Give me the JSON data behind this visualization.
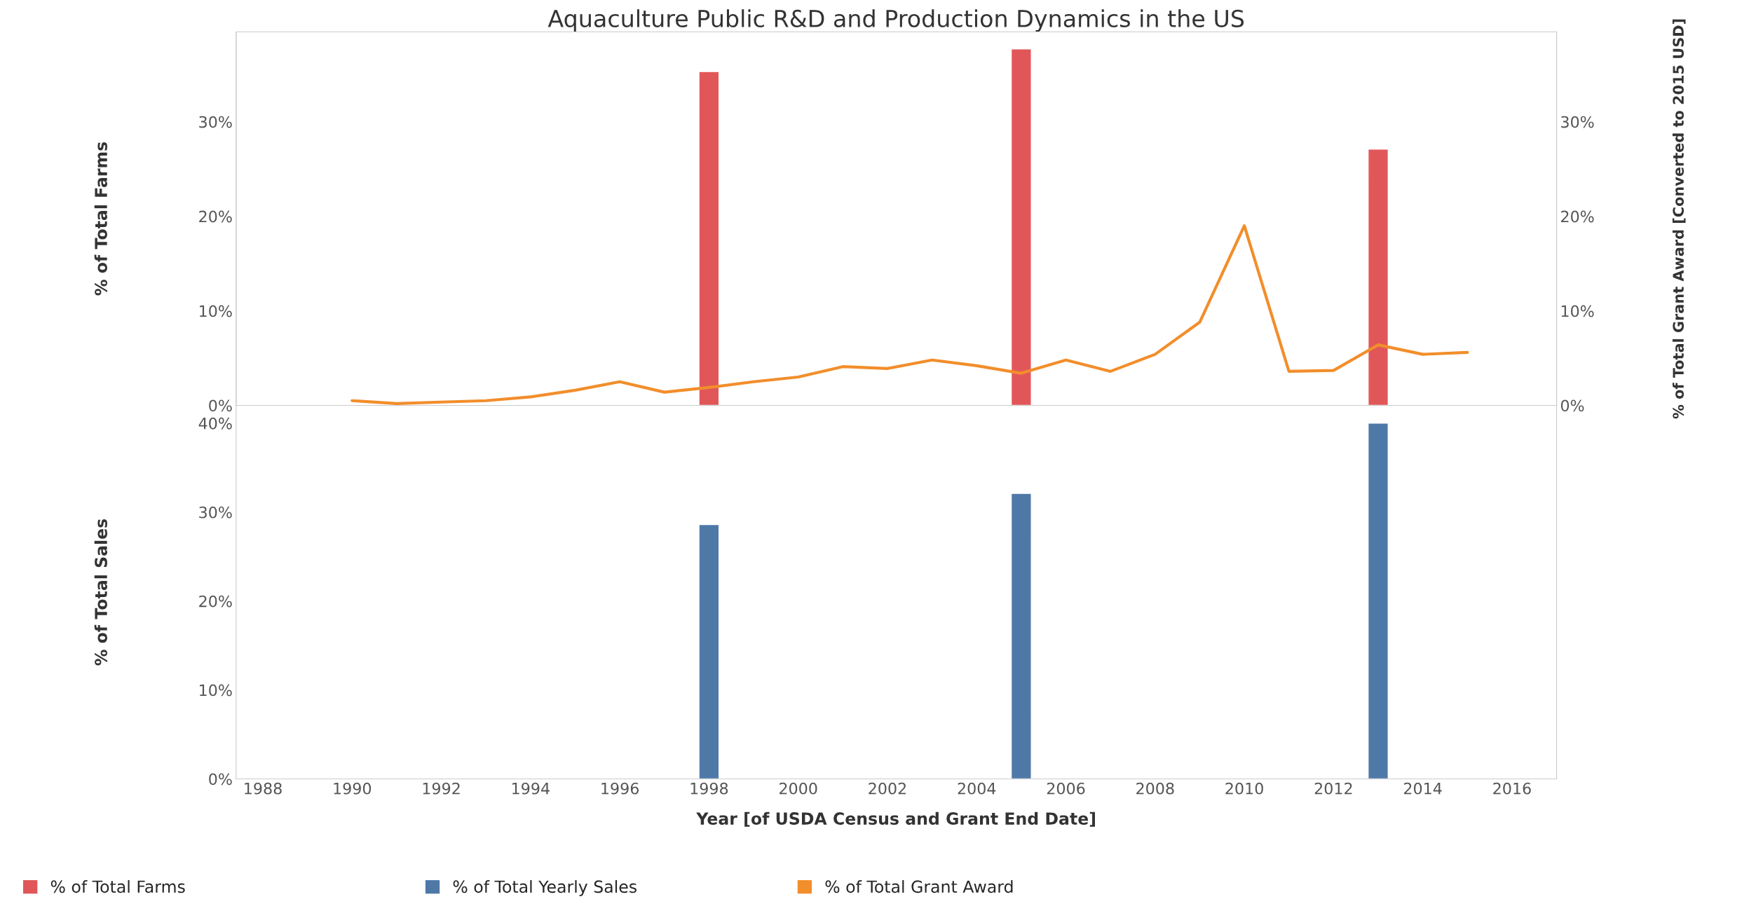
{
  "chart_data": [
    {
      "type": "bar",
      "title": "Aquaculture Public R&D and Production Dynamics in the US",
      "ylabel": "% of Total Farms",
      "y2label": "% of Total Grant Award [Converted to 2015 USD]",
      "xlim": [
        1987.4,
        2017
      ],
      "xticks": [
        1988,
        1990,
        1992,
        1994,
        1996,
        1998,
        2000,
        2002,
        2004,
        2006,
        2008,
        2010,
        2012,
        2014,
        2016
      ],
      "ylim": [
        0,
        39.5
      ],
      "yticks": [
        {
          "value": 0,
          "label": "0%"
        },
        {
          "value": 10,
          "label": "10%"
        },
        {
          "value": 20,
          "label": "20%"
        },
        {
          "value": 30,
          "label": "30%"
        }
      ],
      "y2lim": [
        0,
        39.5
      ],
      "y2ticks": [
        {
          "value": 0,
          "label": "0%"
        },
        {
          "value": 10,
          "label": "10%"
        },
        {
          "value": 20,
          "label": "20%"
        },
        {
          "value": 30,
          "label": "30%"
        }
      ],
      "tick_labels": "y",
      "grid": false,
      "marker": "none",
      "line_style": "solid",
      "legend": "bottom",
      "series": [
        {
          "name": "% of Total Farms",
          "color": "#e15759",
          "x": [
            1998,
            2005,
            2013
          ],
          "values": [
            35.3,
            37.7,
            27.1
          ]
        },
        {
          "name": "% of Total Grant Award",
          "type": "line",
          "axis": "y2",
          "color": "#f28e2b",
          "x": [
            1990,
            1991,
            1992,
            1993,
            1994,
            1995,
            1996,
            1997,
            1998,
            1999,
            2000,
            2001,
            2002,
            2003,
            2004,
            2005,
            2006,
            2007,
            2008,
            2009,
            2010,
            2011,
            2012,
            2013,
            2014,
            2015
          ],
          "values": [
            0.5,
            0.2,
            0.35,
            0.5,
            0.9,
            1.6,
            2.5,
            1.4,
            1.9,
            2.5,
            3.0,
            4.1,
            3.9,
            4.8,
            4.2,
            3.4,
            4.8,
            3.6,
            5.4,
            8.8,
            19.0,
            3.6,
            3.7,
            6.4,
            5.4,
            5.6
          ]
        }
      ]
    },
    {
      "type": "bar",
      "xlabel": "Year [of USDA Census and Grant End Date]",
      "ylabel": "% of Total Sales",
      "xlim": [
        1987.4,
        2017
      ],
      "xticks": [
        1988,
        1990,
        1992,
        1994,
        1996,
        1998,
        2000,
        2002,
        2004,
        2006,
        2008,
        2010,
        2012,
        2014,
        2016
      ],
      "ylim": [
        0,
        42
      ],
      "yticks": [
        {
          "value": 0,
          "label": "0%"
        },
        {
          "value": 10,
          "label": "10%"
        },
        {
          "value": 20,
          "label": "20%"
        },
        {
          "value": 30,
          "label": "30%"
        },
        {
          "value": 40,
          "label": "40%"
        }
      ],
      "grid": false,
      "legend": "bottom",
      "series": [
        {
          "name": "% of Total Yearly Sales",
          "color": "#4e79a7",
          "x": [
            1998,
            2005,
            2013
          ],
          "values": [
            28.6,
            32.1,
            40.0
          ]
        }
      ]
    }
  ]
}
